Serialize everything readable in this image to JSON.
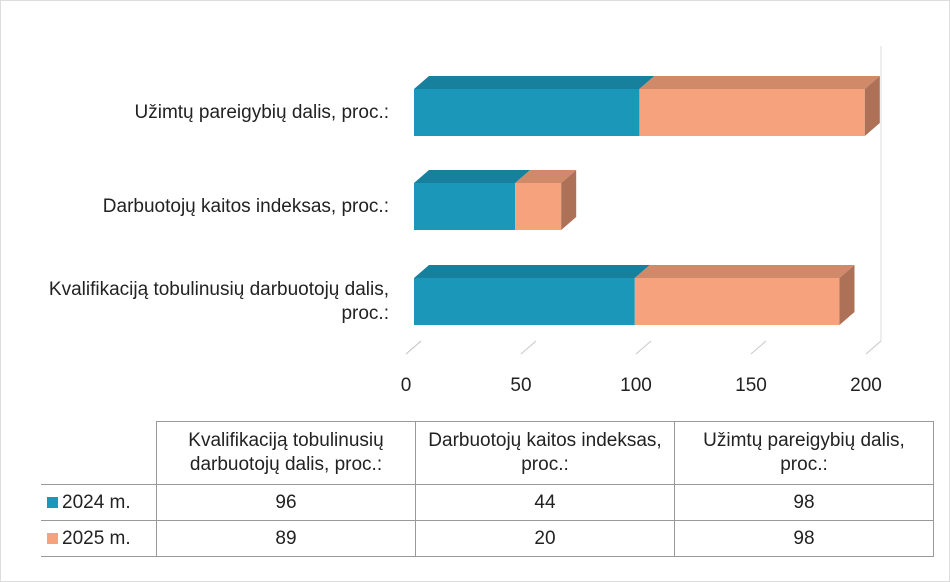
{
  "chart_data": {
    "type": "bar3d_stacked_horizontal",
    "categories": [
      "Kvalifikaciją tobulinusių darbuotojų dalis, proc.:",
      "Darbuotojų kaitos indeksas, proc.:",
      "Užimtų pareigybių dalis, proc.:"
    ],
    "series": [
      {
        "name": "2024 m.",
        "color": "#1b97b9",
        "values": [
          96,
          44,
          98
        ]
      },
      {
        "name": "2025 m.",
        "color": "#f6a27c",
        "values": [
          89,
          20,
          98
        ]
      }
    ],
    "xlim": [
      0,
      200
    ],
    "xticks": [
      0,
      50,
      100,
      150,
      200
    ],
    "grid": true
  }
}
